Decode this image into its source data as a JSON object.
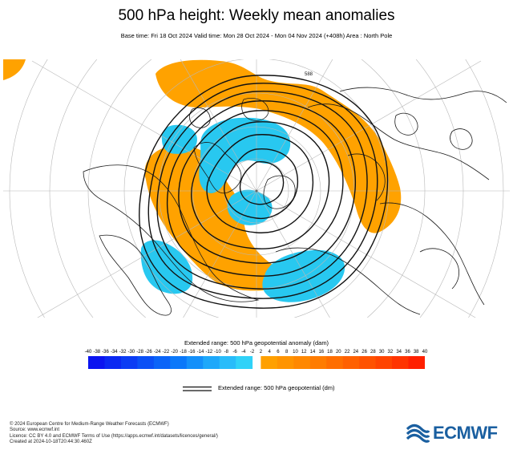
{
  "header": {
    "title": "500 hPa height: Weekly mean anomalies",
    "subtitle": "Base time: Fri 18 Oct 2024 Valid time: Mon 28 Oct 2024 - Mon 04 Nov 2024 (+408h) Area : North Pole"
  },
  "map": {
    "projection": "polar stereographic",
    "area": "North Pole",
    "contour_label": "588"
  },
  "legend": {
    "anomaly_title": "Extended range: 500 hPa geopotential anomaly (dam)",
    "ticks": [
      "-40",
      "-38",
      "-36",
      "-34",
      "-32",
      "-30",
      "-28",
      "-26",
      "-24",
      "-22",
      "-20",
      "-18",
      "-16",
      "-14",
      "-12",
      "-10",
      "-8",
      "-6",
      "-4",
      "-2",
      "2",
      "4",
      "6",
      "8",
      "10",
      "12",
      "14",
      "16",
      "18",
      "20",
      "22",
      "24",
      "26",
      "28",
      "30",
      "32",
      "34",
      "36",
      "38",
      "40"
    ],
    "negative_colors": [
      "#0a14f0",
      "#0a28f2",
      "#0a3cf4",
      "#0a50f6",
      "#0a64f8",
      "#0a78fa",
      "#1490fa",
      "#1ea8fa",
      "#28bcfa",
      "#30d2f8"
    ],
    "positive_colors": [
      "#ffa000",
      "#ff9400",
      "#ff8800",
      "#ff7c00",
      "#ff6e00",
      "#ff6000",
      "#ff5200",
      "#ff4400",
      "#ff3400",
      "#ff2000"
    ],
    "contour_title": "Extended range: 500 hPa geopotential (dm)"
  },
  "footer": {
    "lines": [
      "© 2024 European Centre for Medium-Range Weather Forecasts (ECMWF)",
      "Source: www.ecmwf.int",
      "Licence: CC BY 4.0 and ECMWF Terms of Use (https://apps.ecmwf.int/datasets/licences/general/)",
      "Created at 2024-10-18T20:44:30.460Z"
    ]
  },
  "logo": {
    "text": "ECMWF",
    "color": "#1a5fa0"
  }
}
